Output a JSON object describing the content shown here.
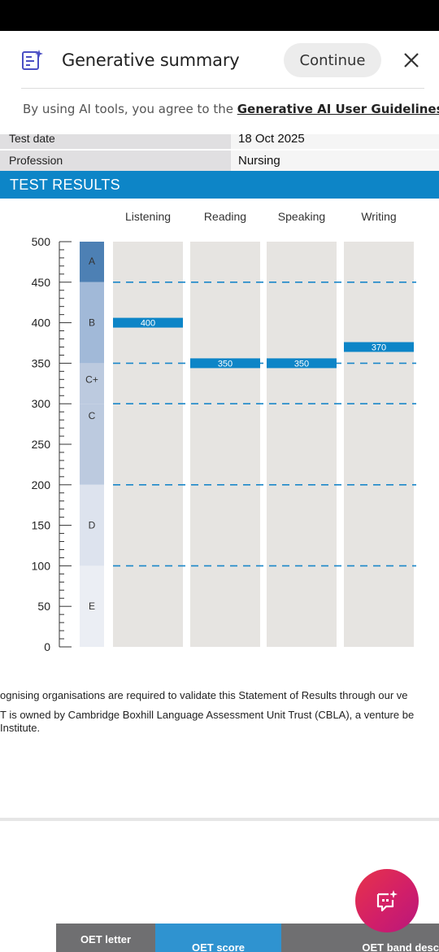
{
  "header": {
    "title": "Generative summary",
    "continue_label": "Continue",
    "disclaimer_prefix": "By using AI tools, you agree to the ",
    "disclaimer_link": "Generative AI User Guidelines."
  },
  "info_rows": [
    {
      "label": "Test date",
      "value": "18 Oct 2025"
    },
    {
      "label": "Profession",
      "value": "Nursing"
    }
  ],
  "results_heading": "TEST RESULTS",
  "chart_data": {
    "type": "bar",
    "categories": [
      "Listening",
      "Reading",
      "Speaking",
      "Writing"
    ],
    "values": [
      400,
      350,
      350,
      370
    ],
    "data_labels": [
      "400",
      "350",
      "350",
      "370"
    ],
    "y_ticks": [
      "0",
      "50",
      "100",
      "150",
      "200",
      "250",
      "300",
      "350",
      "400",
      "450",
      "500"
    ],
    "ylim": [
      0,
      500
    ],
    "grade_bands": [
      {
        "label": "A",
        "from": 450,
        "to": 500,
        "color": "#4d80b4"
      },
      {
        "label": "B",
        "from": 350,
        "to": 450,
        "color": "#a1b9d8"
      },
      {
        "label": "C+",
        "from": 300,
        "to": 350,
        "color": "#bccadf"
      },
      {
        "label": "C",
        "from": 200,
        "to": 300,
        "color": "#bccadf"
      },
      {
        "label": "D",
        "from": 100,
        "to": 200,
        "color": "#dde3ee"
      },
      {
        "label": "E",
        "from": 0,
        "to": 100,
        "color": "#ebeef4"
      }
    ],
    "reference_lines": [
      100,
      200,
      300,
      350,
      450
    ],
    "bar_color": "#0d85c7",
    "column_color": "#e6e4e1",
    "grid": "dashed"
  },
  "footer_lines": [
    "ognising organisations are required to validate this Statement of Results through our ve",
    "T is owned by Cambridge Boxhill Language Assessment Unit Trust (CBLA), a venture be",
    " Institute."
  ],
  "tabs": {
    "letter": "OET letter",
    "score": "OET score",
    "band": "OET band desc"
  },
  "colors": {
    "accent": "#0d85c7",
    "fab": "#d21f68"
  }
}
